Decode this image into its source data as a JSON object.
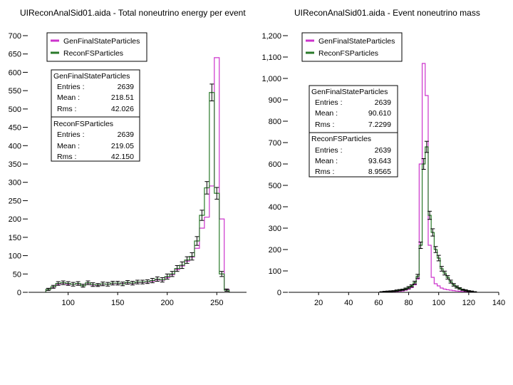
{
  "colors": {
    "gen": "#cc33cc",
    "recon": "#2a7a2a",
    "errbar": "#000000",
    "axis": "#000000"
  },
  "chart_data": [
    {
      "type": "histogram",
      "title": "UIReconAnalSid01.aida - Total noneutrino energy per event",
      "xlim": [
        60,
        280
      ],
      "ylim": [
        0,
        700
      ],
      "x_ticks": [
        100,
        150,
        200,
        250
      ],
      "y_ticks": [
        0,
        50,
        100,
        150,
        200,
        250,
        300,
        350,
        400,
        450,
        500,
        550,
        600,
        650,
        700
      ],
      "bin_width": 5,
      "legend": [
        "GenFinalStateParticles",
        "ReconFSParticles"
      ],
      "legend_position": "top-left",
      "stats": [
        {
          "name": "GenFinalStateParticles",
          "rows": [
            {
              "label": "Entries :",
              "value": "2639"
            },
            {
              "label": "Mean :",
              "value": "218.51"
            },
            {
              "label": "Rms :",
              "value": "42.026"
            }
          ]
        },
        {
          "name": "ReconFSParticles",
          "rows": [
            {
              "label": "Entries :",
              "value": "2639"
            },
            {
              "label": "Mean :",
              "value": "219.05"
            },
            {
              "label": "Rms :",
              "value": "42.150"
            }
          ]
        }
      ],
      "series": [
        {
          "name": "GenFinalStateParticles",
          "color": "gen",
          "errorbars": false,
          "x": [
            80,
            85,
            90,
            95,
            100,
            105,
            110,
            115,
            120,
            125,
            130,
            135,
            140,
            145,
            150,
            155,
            160,
            165,
            170,
            175,
            180,
            185,
            190,
            195,
            200,
            205,
            210,
            215,
            220,
            225,
            230,
            235,
            240,
            245,
            250,
            255,
            260
          ],
          "y": [
            8,
            14,
            22,
            25,
            22,
            22,
            23,
            18,
            25,
            20,
            19,
            22,
            22,
            24,
            24,
            24,
            26,
            24,
            27,
            27,
            28,
            30,
            34,
            33,
            40,
            48,
            62,
            72,
            85,
            96,
            120,
            175,
            205,
            290,
            640,
            200,
            8
          ]
        },
        {
          "name": "ReconFSParticles",
          "color": "recon",
          "errorbars": true,
          "x": [
            80,
            85,
            90,
            95,
            100,
            105,
            110,
            115,
            120,
            125,
            130,
            135,
            140,
            145,
            150,
            155,
            160,
            165,
            170,
            175,
            180,
            185,
            190,
            195,
            200,
            205,
            210,
            215,
            220,
            225,
            230,
            235,
            240,
            245,
            250,
            255,
            260
          ],
          "y": [
            8,
            15,
            24,
            26,
            24,
            22,
            24,
            18,
            26,
            21,
            20,
            23,
            22,
            25,
            25,
            23,
            27,
            25,
            28,
            28,
            29,
            32,
            36,
            34,
            43,
            50,
            65,
            74,
            88,
            98,
            140,
            210,
            285,
            545,
            270,
            50,
            6
          ],
          "err": [
            3,
            4,
            5,
            5,
            5,
            5,
            5,
            4,
            5,
            5,
            4,
            5,
            5,
            5,
            5,
            5,
            5,
            5,
            5,
            5,
            5,
            6,
            6,
            6,
            7,
            7,
            8,
            9,
            9,
            10,
            12,
            14,
            17,
            23,
            16,
            7,
            3
          ]
        }
      ]
    },
    {
      "type": "histogram",
      "title": "UIReconAnalSid01.aida - Event noneutrino mass",
      "xlim": [
        0,
        140
      ],
      "ylim": [
        0,
        1200
      ],
      "x_ticks": [
        20,
        40,
        60,
        80,
        100,
        120,
        140
      ],
      "y_ticks": [
        0,
        100,
        200,
        300,
        400,
        500,
        600,
        700,
        800,
        900,
        1000,
        1100,
        1200
      ],
      "y_tick_labels": [
        "0",
        "100",
        "200",
        "300",
        "400",
        "500",
        "600",
        "700",
        "800",
        "900",
        "1,000",
        "1,100",
        "1,200"
      ],
      "bin_width": 2,
      "legend": [
        "GenFinalStateParticles",
        "ReconFSParticles"
      ],
      "legend_position": "top-left",
      "stats": [
        {
          "name": "GenFinalStateParticles",
          "rows": [
            {
              "label": "Entries :",
              "value": "2639"
            },
            {
              "label": "Mean :",
              "value": "90.610"
            },
            {
              "label": "Rms :",
              "value": "7.2299"
            }
          ]
        },
        {
          "name": "ReconFSParticles",
          "rows": [
            {
              "label": "Entries :",
              "value": "2639"
            },
            {
              "label": "Mean :",
              "value": "93.643"
            },
            {
              "label": "Rms :",
              "value": "8.9565"
            }
          ]
        }
      ],
      "series": [
        {
          "name": "GenFinalStateParticles",
          "color": "gen",
          "errorbars": false,
          "x": [
            62,
            64,
            66,
            68,
            70,
            72,
            74,
            76,
            78,
            80,
            82,
            84,
            86,
            88,
            90,
            92,
            94,
            96,
            98,
            100,
            102,
            104,
            106,
            108,
            110,
            112,
            114,
            116,
            118,
            120,
            122,
            124
          ],
          "y": [
            2,
            2,
            3,
            3,
            4,
            4,
            5,
            6,
            10,
            14,
            22,
            35,
            62,
            600,
            1070,
            920,
            220,
            70,
            40,
            30,
            20,
            15,
            12,
            10,
            8,
            6,
            5,
            4,
            3,
            3,
            2,
            2
          ]
        },
        {
          "name": "ReconFSParticles",
          "color": "recon",
          "errorbars": true,
          "x": [
            62,
            64,
            66,
            68,
            70,
            72,
            74,
            76,
            78,
            80,
            82,
            84,
            86,
            88,
            90,
            92,
            94,
            96,
            98,
            100,
            102,
            104,
            106,
            108,
            110,
            112,
            114,
            116,
            118,
            120,
            122,
            124
          ],
          "y": [
            2,
            3,
            4,
            5,
            6,
            8,
            10,
            12,
            16,
            22,
            30,
            45,
            75,
            220,
            600,
            680,
            360,
            280,
            200,
            160,
            110,
            90,
            70,
            50,
            35,
            25,
            18,
            12,
            9,
            6,
            4,
            2
          ],
          "err": [
            1,
            2,
            2,
            2,
            2,
            3,
            3,
            3,
            4,
            5,
            5,
            7,
            9,
            15,
            25,
            26,
            19,
            17,
            14,
            13,
            11,
            9,
            8,
            7,
            6,
            5,
            4,
            3,
            3,
            2,
            2,
            1
          ]
        }
      ]
    }
  ]
}
